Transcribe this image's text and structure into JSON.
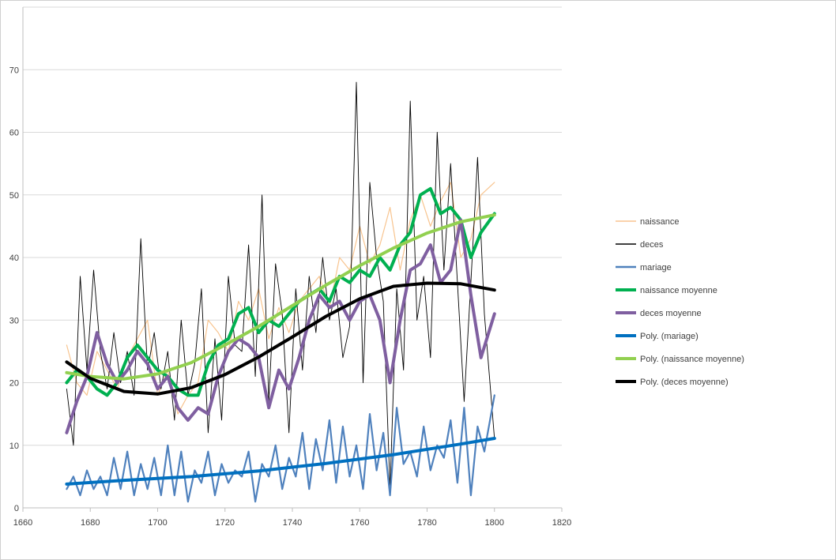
{
  "chart_data": {
    "type": "line",
    "title": "",
    "xlabel": "",
    "ylabel": "",
    "xlim": [
      1660,
      1820
    ],
    "ylim": [
      0,
      80
    ],
    "xticks": [
      1660,
      1680,
      1700,
      1720,
      1740,
      1760,
      1780,
      1800,
      1820
    ],
    "yticks": [
      0,
      10,
      20,
      30,
      40,
      50,
      60,
      70
    ],
    "grid": "horizontal",
    "legend_position": "right",
    "series": [
      {
        "name": "naissance",
        "color": "#F8C48F",
        "x": [
          1673,
          1676,
          1679,
          1682,
          1685,
          1688,
          1691,
          1694,
          1697,
          1700,
          1703,
          1706,
          1709,
          1712,
          1715,
          1718,
          1721,
          1724,
          1727,
          1730,
          1733,
          1736,
          1739,
          1742,
          1745,
          1748,
          1751,
          1754,
          1757,
          1760,
          1763,
          1766,
          1769,
          1772,
          1775,
          1778,
          1781,
          1784,
          1787,
          1790,
          1793,
          1796,
          1800
        ],
        "y": [
          26,
          20,
          18,
          25,
          22,
          19,
          24,
          27,
          30,
          18,
          22,
          15,
          18,
          20,
          30,
          28,
          25,
          33,
          30,
          35,
          27,
          32,
          28,
          33,
          35,
          37,
          32,
          40,
          38,
          45,
          39,
          42,
          48,
          38,
          46,
          50,
          45,
          49,
          52,
          40,
          43,
          50,
          52
        ]
      },
      {
        "name": "deces",
        "color": "#000000",
        "x": [
          1673,
          1675,
          1677,
          1679,
          1681,
          1683,
          1685,
          1687,
          1689,
          1691,
          1693,
          1695,
          1697,
          1699,
          1701,
          1703,
          1705,
          1707,
          1709,
          1711,
          1713,
          1715,
          1717,
          1719,
          1721,
          1723,
          1725,
          1727,
          1729,
          1731,
          1733,
          1735,
          1737,
          1739,
          1741,
          1743,
          1745,
          1747,
          1749,
          1751,
          1753,
          1755,
          1757,
          1759,
          1761,
          1763,
          1765,
          1767,
          1769,
          1771,
          1773,
          1775,
          1777,
          1779,
          1781,
          1783,
          1785,
          1787,
          1789,
          1791,
          1793,
          1795,
          1797,
          1800
        ],
        "y": [
          19,
          10,
          37,
          22,
          38,
          25,
          19,
          28,
          20,
          25,
          18,
          43,
          22,
          28,
          19,
          25,
          14,
          30,
          18,
          23,
          35,
          12,
          27,
          14,
          37,
          26,
          25,
          42,
          21,
          50,
          17,
          39,
          31,
          12,
          35,
          22,
          37,
          28,
          40,
          30,
          35,
          24,
          29,
          68,
          20,
          52,
          40,
          33,
          3,
          35,
          22,
          65,
          30,
          37,
          24,
          60,
          38,
          55,
          36,
          17,
          36,
          56,
          31,
          11
        ]
      },
      {
        "name": "mariage",
        "color": "#4F81BD",
        "x": [
          1673,
          1675,
          1677,
          1679,
          1681,
          1683,
          1685,
          1687,
          1689,
          1691,
          1693,
          1695,
          1697,
          1699,
          1701,
          1703,
          1705,
          1707,
          1709,
          1711,
          1713,
          1715,
          1717,
          1719,
          1721,
          1723,
          1725,
          1727,
          1729,
          1731,
          1733,
          1735,
          1737,
          1739,
          1741,
          1743,
          1745,
          1747,
          1749,
          1751,
          1753,
          1755,
          1757,
          1759,
          1761,
          1763,
          1765,
          1767,
          1769,
          1771,
          1773,
          1775,
          1777,
          1779,
          1781,
          1783,
          1785,
          1787,
          1789,
          1791,
          1793,
          1795,
          1797,
          1800
        ],
        "y": [
          3,
          5,
          2,
          6,
          3,
          5,
          2,
          8,
          3,
          9,
          2,
          7,
          3,
          8,
          2,
          10,
          2,
          9,
          1,
          6,
          4,
          9,
          2,
          7,
          4,
          6,
          5,
          9,
          1,
          7,
          5,
          10,
          3,
          8,
          5,
          12,
          3,
          11,
          6,
          14,
          4,
          13,
          5,
          10,
          3,
          15,
          6,
          12,
          2,
          16,
          7,
          9,
          5,
          13,
          6,
          10,
          8,
          14,
          4,
          16,
          2,
          13,
          9,
          18
        ]
      },
      {
        "name": "naissance moyenne",
        "color": "#00B050",
        "x": [
          1673,
          1676,
          1679,
          1682,
          1685,
          1688,
          1691,
          1694,
          1697,
          1700,
          1703,
          1706,
          1709,
          1712,
          1715,
          1718,
          1721,
          1724,
          1727,
          1730,
          1733,
          1736,
          1739,
          1742,
          1745,
          1748,
          1751,
          1754,
          1757,
          1760,
          1763,
          1766,
          1769,
          1772,
          1775,
          1778,
          1781,
          1784,
          1787,
          1790,
          1793,
          1796,
          1800
        ],
        "y": [
          20,
          22,
          21,
          19,
          18,
          20,
          24,
          26,
          24,
          22,
          21,
          19,
          18,
          18,
          23,
          26,
          27,
          31,
          32,
          28,
          30,
          29,
          31,
          33,
          34,
          35,
          33,
          37,
          36,
          38,
          37,
          40,
          38,
          42,
          44,
          50,
          51,
          47,
          48,
          46,
          40,
          44,
          47
        ]
      },
      {
        "name": "deces moyenne",
        "color": "#7F5FA0",
        "x": [
          1673,
          1676,
          1679,
          1682,
          1685,
          1688,
          1691,
          1694,
          1697,
          1700,
          1703,
          1706,
          1709,
          1712,
          1715,
          1718,
          1721,
          1724,
          1727,
          1730,
          1733,
          1736,
          1739,
          1742,
          1745,
          1748,
          1751,
          1754,
          1757,
          1760,
          1763,
          1766,
          1769,
          1772,
          1775,
          1778,
          1781,
          1784,
          1787,
          1790,
          1793,
          1796,
          1800
        ],
        "y": [
          12,
          17,
          21,
          28,
          23,
          20,
          22,
          25,
          23,
          19,
          21,
          16,
          14,
          16,
          15,
          21,
          25,
          27,
          26,
          24,
          16,
          22,
          19,
          24,
          30,
          34,
          32,
          33,
          30,
          33,
          34,
          30,
          20,
          30,
          38,
          39,
          42,
          36,
          38,
          46,
          34,
          24,
          31
        ]
      },
      {
        "name": "Poly. (mariage)",
        "color": "#0070C0",
        "x": [
          1673,
          1690,
          1710,
          1730,
          1750,
          1770,
          1790,
          1800
        ],
        "y": [
          3.8,
          4.4,
          5.0,
          5.9,
          7.1,
          8.5,
          10.2,
          11.1
        ]
      },
      {
        "name": "Poly. (naissance moyenne)",
        "color": "#92D050",
        "x": [
          1673,
          1680,
          1690,
          1700,
          1710,
          1720,
          1730,
          1740,
          1750,
          1760,
          1770,
          1780,
          1790,
          1800
        ],
        "y": [
          21.6,
          21.0,
          20.6,
          21.4,
          23.2,
          26.0,
          29.0,
          32.3,
          35.6,
          38.7,
          41.5,
          43.9,
          45.7,
          46.8
        ]
      },
      {
        "name": "Poly. (deces moyenne)",
        "color": "#000000",
        "x": [
          1673,
          1680,
          1690,
          1700,
          1710,
          1720,
          1730,
          1740,
          1750,
          1760,
          1770,
          1780,
          1790,
          1800
        ],
        "y": [
          23.3,
          20.7,
          18.6,
          18.2,
          19.2,
          21.3,
          24.1,
          27.3,
          30.6,
          33.4,
          35.4,
          35.9,
          35.8,
          34.8
        ]
      }
    ]
  }
}
